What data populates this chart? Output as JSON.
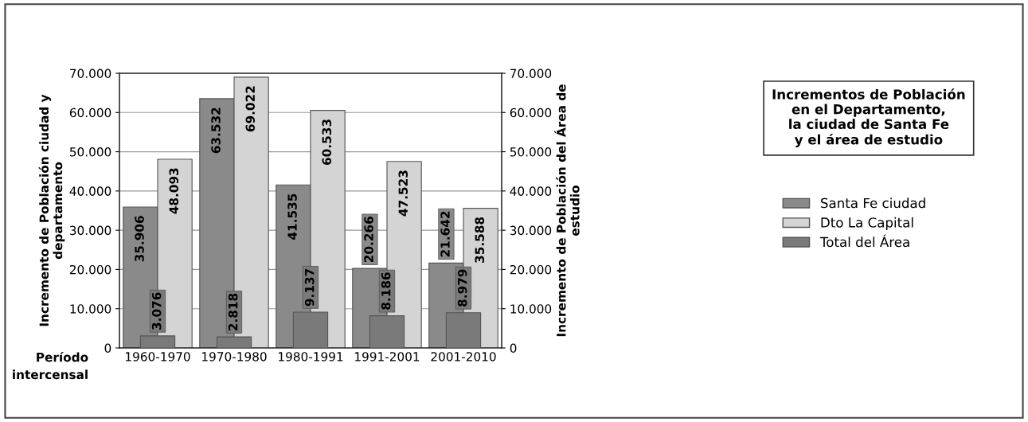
{
  "chart_data": {
    "type": "bar",
    "title": "Incrementos de Población\nen el Departamento,\nla ciudad de Santa Fe\ny el área de estudio",
    "xlabel": "Período\nintercensal",
    "ylabel": "Incremento de Población ciudad y\ndepartamento",
    "y2label": "Incremento de Población del Área de\nestudio",
    "categories": [
      "1960-1970",
      "1970-1980",
      "1980-1991",
      "1991-2001",
      "2001-2010"
    ],
    "series": [
      {
        "name": "Santa Fe ciudad",
        "color": "#8a8a8a",
        "values": [
          35906,
          63532,
          41535,
          20266,
          21642
        ],
        "value_labels": [
          "35.906",
          "63.532",
          "41.535",
          "20.266",
          "21.642"
        ]
      },
      {
        "name": "Dto La Capital",
        "color": "#d4d4d4",
        "values": [
          48093,
          69022,
          60533,
          47523,
          35588
        ],
        "value_labels": [
          "48.093",
          "69.022",
          "60.533",
          "47.523",
          "35.588"
        ]
      },
      {
        "name": "Total del Área",
        "color": "#7a7a7a",
        "axis": "y2",
        "values": [
          3076,
          2818,
          9137,
          8186,
          8979
        ],
        "value_labels": [
          "3.076",
          "2.818",
          "9.137",
          "8.186",
          "8.979"
        ]
      }
    ],
    "ylim": [
      0,
      70000
    ],
    "yticks": [
      0,
      {
        "value": 10000,
        "label": "10.000"
      },
      {
        "value": 20000,
        "label": "20.000"
      },
      {
        "value": 30000,
        "label": "30.000"
      },
      {
        "value": 40000,
        "label": "40.000"
      },
      {
        "value": 50000,
        "label": "50.000"
      },
      {
        "value": 60000,
        "label": "60.000"
      },
      {
        "value": 70000,
        "label": "70.000"
      }
    ],
    "y2lim": [
      0,
      70000
    ],
    "y2ticks": [
      0,
      {
        "value": 10000,
        "label": "10.000"
      },
      {
        "value": 20000,
        "label": "20.000"
      },
      {
        "value": 30000,
        "label": "30.000"
      },
      {
        "value": 40000,
        "label": "40.000"
      },
      {
        "value": 50000,
        "label": "50.000"
      },
      {
        "value": 60000,
        "label": "60.000"
      },
      {
        "value": 70000,
        "label": "70.000"
      }
    ],
    "grid": "y",
    "legend": "right"
  }
}
